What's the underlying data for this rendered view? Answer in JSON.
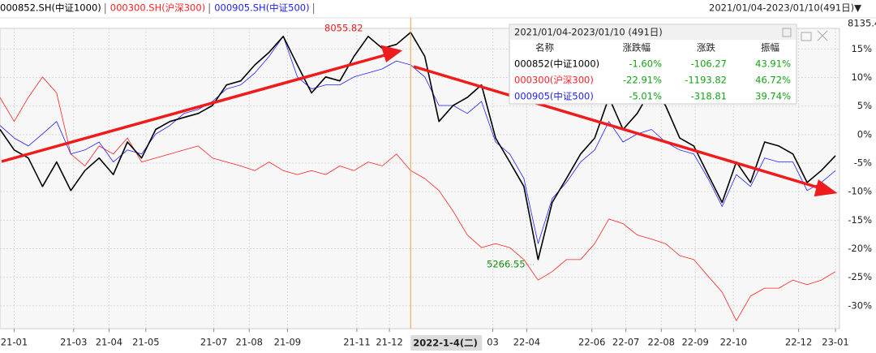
{
  "chart_data": {
    "type": "line",
    "range_label": "2021/01/04-2023/01/10(491日)▼",
    "top_value": "8135.4",
    "series": [
      {
        "name": "000852.SH(中证1000)",
        "color": "#000000",
        "width": 1.6,
        "values": [
          0.9,
          -2.7,
          -4.1,
          -9.1,
          -4.8,
          -9.8,
          -6.3,
          -4.1,
          -7.0,
          -1.3,
          -4.1,
          0.9,
          2.3,
          3.0,
          3.7,
          5.1,
          8.7,
          9.4,
          12.2,
          14.4,
          17.2,
          12.2,
          7.3,
          10.1,
          9.4,
          13.7,
          17.2,
          15.1,
          15.8,
          17.9,
          13.7,
          2.3,
          5.1,
          6.5,
          8.7,
          -0.6,
          -4.8,
          -9.1,
          -21.9,
          -11.9,
          -7.7,
          -3.4,
          -0.6,
          6.5,
          0.9,
          3.7,
          8.0,
          5.1,
          -0.6,
          -2.0,
          -7.0,
          -11.9,
          -4.8,
          -8.4,
          -1.3,
          -2.0,
          -3.4,
          -8.4,
          -6.3,
          -3.7
        ]
      },
      {
        "name": "000300.SH(沪深300)",
        "color": "#ff2020",
        "width": 0.8,
        "values": [
          6.5,
          2.3,
          6.5,
          10.1,
          7.3,
          -3.4,
          -5.5,
          -2.0,
          -3.4,
          -0.6,
          -4.8,
          -4.1,
          -3.4,
          -2.7,
          -2.0,
          -4.1,
          -4.8,
          -5.5,
          -6.3,
          -4.8,
          -6.3,
          -7.0,
          -6.3,
          -7.0,
          -5.5,
          -6.3,
          -4.8,
          -5.5,
          -3.4,
          -6.3,
          -7.7,
          -9.8,
          -13.4,
          -17.6,
          -19.8,
          -19.1,
          -19.8,
          -21.9,
          -25.5,
          -24.0,
          -21.9,
          -21.9,
          -19.1,
          -14.8,
          -15.6,
          -17.6,
          -18.3,
          -19.1,
          -21.2,
          -21.9,
          -24.8,
          -27.6,
          -32.6,
          -28.3,
          -26.9,
          -26.9,
          -25.5,
          -26.3,
          -25.5,
          -24.0
        ]
      },
      {
        "name": "000905.SH(中证500)",
        "color": "#2020ff",
        "width": 0.8,
        "values": [
          1.6,
          -0.6,
          -2.0,
          0.1,
          2.3,
          -3.4,
          -2.7,
          -1.3,
          -4.8,
          -2.7,
          -3.4,
          0.1,
          1.6,
          3.7,
          4.4,
          5.8,
          8.0,
          8.7,
          10.8,
          13.7,
          17.2,
          10.1,
          8.0,
          8.7,
          8.7,
          10.1,
          10.8,
          11.5,
          12.9,
          12.2,
          10.1,
          5.1,
          5.1,
          3.7,
          5.8,
          -1.3,
          -3.4,
          -7.7,
          -19.1,
          -11.2,
          -8.4,
          -4.8,
          -2.7,
          2.3,
          -1.3,
          0.1,
          0.9,
          -1.3,
          -2.7,
          -3.4,
          -7.7,
          -12.6,
          -7.0,
          -9.1,
          -4.1,
          -4.8,
          -4.8,
          -9.8,
          -8.4,
          -6.3
        ]
      }
    ],
    "xlim": [
      0,
      59
    ],
    "xticks": [
      {
        "value": 1.0,
        "label": "21-01"
      },
      {
        "value": 5.2,
        "label": "21-03"
      },
      {
        "value": 7.7,
        "label": "21-04"
      },
      {
        "value": 10.3,
        "label": "21-05"
      },
      {
        "value": 15.1,
        "label": "21-07"
      },
      {
        "value": 17.6,
        "label": "21-08"
      },
      {
        "value": 20.3,
        "label": "21-09"
      },
      {
        "value": 25.2,
        "label": "21-11"
      },
      {
        "value": 27.5,
        "label": "21-12"
      },
      {
        "value": 34.8,
        "label": "03"
      },
      {
        "value": 37.2,
        "label": "22-04"
      },
      {
        "value": 41.8,
        "label": "22-06"
      },
      {
        "value": 44.2,
        "label": "22-07"
      },
      {
        "value": 46.7,
        "label": "22-08"
      },
      {
        "value": 49.1,
        "label": "22-09"
      },
      {
        "value": 51.8,
        "label": "22-10"
      },
      {
        "value": 56.4,
        "label": "22-12"
      },
      {
        "value": 59,
        "label": "23-01"
      }
    ],
    "crosshair": {
      "x": 29.0,
      "label": "2022-1-4(二)"
    },
    "ylim": [
      -34,
      18.6
    ],
    "yticks": [
      {
        "value": 15,
        "label": "15%"
      },
      {
        "value": 10,
        "label": "10%"
      },
      {
        "value": 5,
        "label": "5%"
      },
      {
        "value": 0,
        "label": "0%"
      },
      {
        "value": -5,
        "label": "-5%"
      },
      {
        "value": -10,
        "label": "-10%"
      },
      {
        "value": -15,
        "label": "-15%"
      },
      {
        "value": -20,
        "label": "-20%"
      },
      {
        "value": -25,
        "label": "-25%"
      },
      {
        "value": -30,
        "label": "-30%"
      }
    ],
    "grid": true,
    "annotations": {
      "high": "8055.82",
      "low": "5266.55"
    },
    "table": {
      "title": "2021/01/04-2023/01/10 (491日)",
      "header": [
        "名称",
        "涨跌幅",
        "涨跌",
        "振幅"
      ],
      "value_color": "#16a016",
      "rows": [
        [
          "000852(中证1000)",
          "-1.60%",
          "-106.27",
          "43.91%"
        ],
        [
          "000300(沪深300)",
          "-22.91%",
          "-1193.82",
          "46.72%"
        ],
        [
          "000905(中证500)",
          "-5.01%",
          "-318.81",
          "39.74%"
        ]
      ]
    }
  }
}
